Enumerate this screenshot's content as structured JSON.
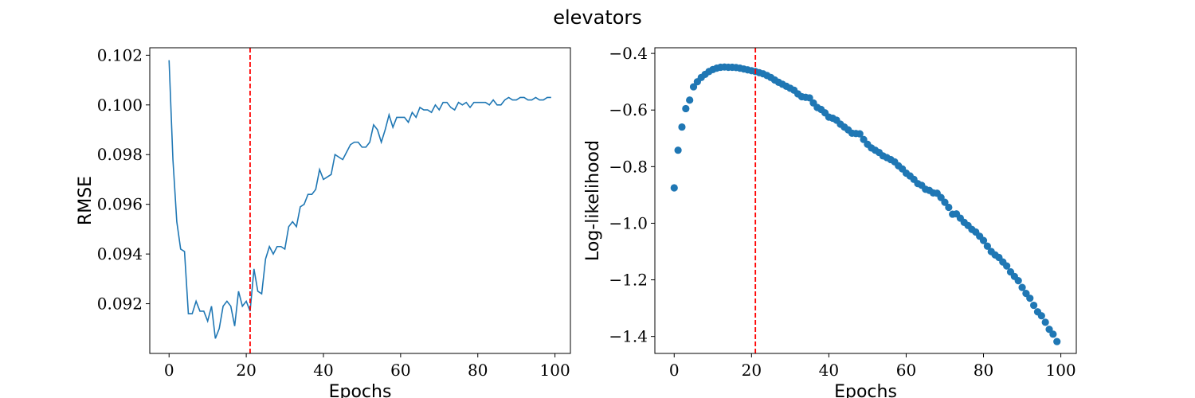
{
  "figure": {
    "suptitle": "elevators"
  },
  "chart_data": [
    {
      "type": "line",
      "title": "",
      "xlabel": "Epochs",
      "ylabel": "RMSE",
      "xlim": [
        -5,
        104
      ],
      "ylim": [
        0.09,
        0.1023
      ],
      "xticks": [
        0,
        20,
        40,
        60,
        80,
        100
      ],
      "xtick_labels": [
        "0",
        "20",
        "40",
        "60",
        "80",
        "100"
      ],
      "yticks": [
        0.092,
        0.094,
        0.096,
        0.098,
        0.1,
        0.102
      ],
      "ytick_labels": [
        "0.092",
        "0.094",
        "0.096",
        "0.098",
        "0.100",
        "0.102"
      ],
      "grid": false,
      "series_color": "#1f77b4",
      "vline": {
        "x": 21,
        "color": "#ff0000",
        "style": "dashed"
      },
      "x": [
        0,
        1,
        2,
        3,
        4,
        5,
        6,
        7,
        8,
        9,
        10,
        11,
        12,
        13,
        14,
        15,
        16,
        17,
        18,
        19,
        20,
        21,
        22,
        23,
        24,
        25,
        26,
        27,
        28,
        29,
        30,
        31,
        32,
        33,
        34,
        35,
        36,
        37,
        38,
        39,
        40,
        41,
        42,
        43,
        44,
        45,
        46,
        47,
        48,
        49,
        50,
        51,
        52,
        53,
        54,
        55,
        56,
        57,
        58,
        59,
        60,
        61,
        62,
        63,
        64,
        65,
        66,
        67,
        68,
        69,
        70,
        71,
        72,
        73,
        74,
        75,
        76,
        77,
        78,
        79,
        80,
        81,
        82,
        83,
        84,
        85,
        86,
        87,
        88,
        89,
        90,
        91,
        92,
        93,
        94,
        95,
        96,
        97,
        98,
        99
      ],
      "values": [
        0.1018,
        0.0978,
        0.0953,
        0.0942,
        0.0941,
        0.0916,
        0.0916,
        0.0921,
        0.0917,
        0.0917,
        0.0913,
        0.0919,
        0.0906,
        0.091,
        0.0919,
        0.0921,
        0.0919,
        0.0911,
        0.0925,
        0.0919,
        0.0921,
        0.0917,
        0.0934,
        0.0925,
        0.0924,
        0.0938,
        0.0943,
        0.094,
        0.0943,
        0.0943,
        0.0942,
        0.0951,
        0.0953,
        0.0951,
        0.0959,
        0.096,
        0.0964,
        0.0964,
        0.0966,
        0.0974,
        0.097,
        0.0971,
        0.0972,
        0.098,
        0.0979,
        0.0978,
        0.0981,
        0.0984,
        0.0985,
        0.0985,
        0.0983,
        0.0983,
        0.0985,
        0.0992,
        0.099,
        0.0985,
        0.099,
        0.0996,
        0.0991,
        0.0995,
        0.0995,
        0.0995,
        0.0993,
        0.0997,
        0.0995,
        0.0999,
        0.0998,
        0.0998,
        0.0997,
        0.1,
        0.0998,
        0.1001,
        0.1001,
        0.0999,
        0.0998,
        0.1001,
        0.1,
        0.1001,
        0.0999,
        0.1001,
        0.1001,
        0.1001,
        0.1001,
        0.1,
        0.1002,
        0.1,
        0.1,
        0.1002,
        0.1003,
        0.1002,
        0.1002,
        0.1003,
        0.1003,
        0.1002,
        0.1002,
        0.1003,
        0.1002,
        0.1002,
        0.1003,
        0.1003
      ]
    },
    {
      "type": "scatter",
      "title": "",
      "xlabel": "Epochs",
      "ylabel": "Log-likelihood",
      "xlim": [
        -5,
        104
      ],
      "ylim": [
        -1.46,
        -0.38
      ],
      "xticks": [
        0,
        20,
        40,
        60,
        80,
        100
      ],
      "xtick_labels": [
        "0",
        "20",
        "40",
        "60",
        "80",
        "100"
      ],
      "yticks": [
        -1.4,
        -1.2,
        -1.0,
        -0.8,
        -0.6,
        -0.4
      ],
      "ytick_labels": [
        "−1.4",
        "−1.2",
        "−1.0",
        "−0.8",
        "−0.6",
        "−0.4"
      ],
      "grid": false,
      "series_color": "#1f77b4",
      "vline": {
        "x": 21,
        "color": "#ff0000",
        "style": "dashed"
      },
      "x": [
        0,
        1,
        2,
        3,
        4,
        5,
        6,
        7,
        8,
        9,
        10,
        11,
        12,
        13,
        14,
        15,
        16,
        17,
        18,
        19,
        20,
        21,
        22,
        23,
        24,
        25,
        26,
        27,
        28,
        29,
        30,
        31,
        32,
        33,
        34,
        35,
        36,
        37,
        38,
        39,
        40,
        41,
        42,
        43,
        44,
        45,
        46,
        47,
        48,
        49,
        50,
        51,
        52,
        53,
        54,
        55,
        56,
        57,
        58,
        59,
        60,
        61,
        62,
        63,
        64,
        65,
        66,
        67,
        68,
        69,
        70,
        71,
        72,
        73,
        74,
        75,
        76,
        77,
        78,
        79,
        80,
        81,
        82,
        83,
        84,
        85,
        86,
        87,
        88,
        89,
        90,
        91,
        92,
        93,
        94,
        95,
        96,
        97,
        98,
        99
      ],
      "values": [
        -0.875,
        -0.742,
        -0.66,
        -0.595,
        -0.565,
        -0.518,
        -0.5,
        -0.485,
        -0.474,
        -0.464,
        -0.457,
        -0.452,
        -0.449,
        -0.448,
        -0.449,
        -0.449,
        -0.45,
        -0.452,
        -0.455,
        -0.458,
        -0.461,
        -0.464,
        -0.468,
        -0.472,
        -0.478,
        -0.485,
        -0.494,
        -0.502,
        -0.509,
        -0.516,
        -0.523,
        -0.53,
        -0.543,
        -0.553,
        -0.555,
        -0.557,
        -0.575,
        -0.591,
        -0.598,
        -0.61,
        -0.625,
        -0.629,
        -0.636,
        -0.65,
        -0.66,
        -0.67,
        -0.682,
        -0.683,
        -0.684,
        -0.704,
        -0.721,
        -0.734,
        -0.742,
        -0.75,
        -0.762,
        -0.768,
        -0.775,
        -0.783,
        -0.797,
        -0.808,
        -0.823,
        -0.833,
        -0.845,
        -0.86,
        -0.866,
        -0.88,
        -0.884,
        -0.893,
        -0.894,
        -0.909,
        -0.926,
        -0.944,
        -0.968,
        -0.967,
        -0.982,
        -0.997,
        -1.008,
        -1.022,
        -1.031,
        -1.046,
        -1.061,
        -1.081,
        -1.1,
        -1.112,
        -1.121,
        -1.137,
        -1.151,
        -1.172,
        -1.188,
        -1.203,
        -1.227,
        -1.248,
        -1.265,
        -1.29,
        -1.313,
        -1.327,
        -1.35,
        -1.375,
        -1.392,
        -1.418
      ]
    }
  ]
}
